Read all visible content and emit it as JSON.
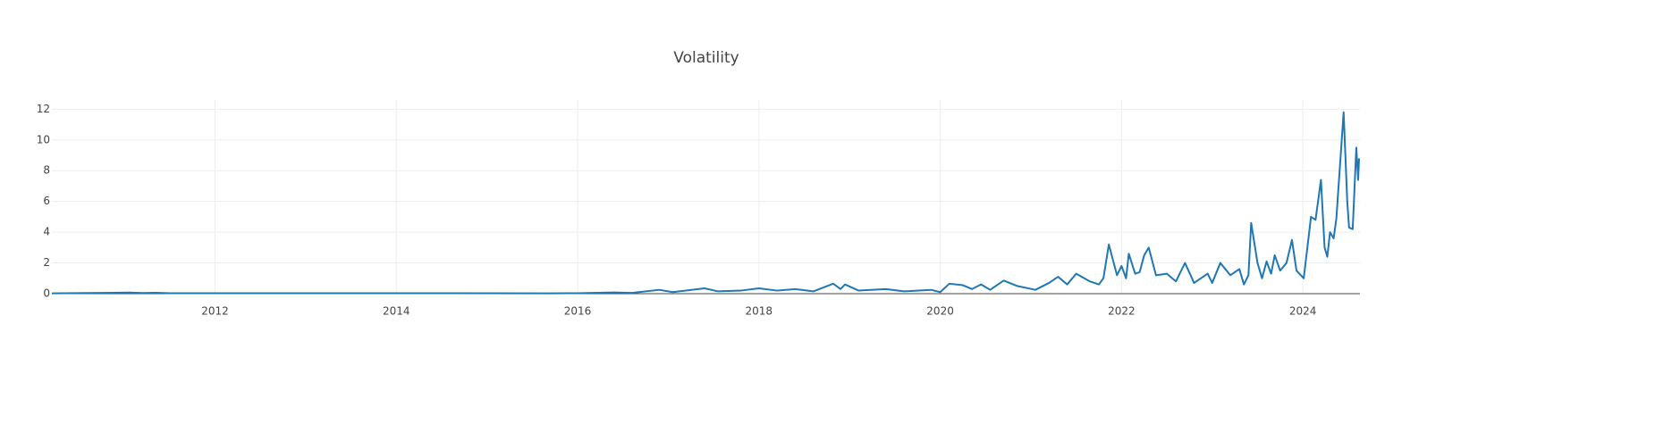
{
  "chart_data": {
    "type": "line",
    "title": "Volatility",
    "x": [
      2010.2,
      2011.05,
      2011.2,
      2011.35,
      2011.5,
      2013,
      2014.5,
      2015.7,
      2016.0,
      2016.4,
      2016.6,
      2016.9,
      2017.05,
      2017.4,
      2017.55,
      2017.8,
      2018.0,
      2018.2,
      2018.4,
      2018.6,
      2018.82,
      2018.9,
      2018.95,
      2019.1,
      2019.4,
      2019.6,
      2019.9,
      2020.0,
      2020.1,
      2020.25,
      2020.35,
      2020.45,
      2020.55,
      2020.7,
      2020.85,
      2021.05,
      2021.2,
      2021.3,
      2021.4,
      2021.5,
      2021.65,
      2021.75,
      2021.8,
      2021.86,
      2021.95,
      2022.0,
      2022.05,
      2022.08,
      2022.15,
      2022.2,
      2022.25,
      2022.3,
      2022.38,
      2022.5,
      2022.6,
      2022.7,
      2022.8,
      2022.95,
      2023.0,
      2023.09,
      2023.2,
      2023.3,
      2023.35,
      2023.4,
      2023.43,
      2023.5,
      2023.55,
      2023.6,
      2023.65,
      2023.69,
      2023.75,
      2023.82,
      2023.88,
      2023.93,
      2024.01,
      2024.09,
      2024.14,
      2024.2,
      2024.24,
      2024.27,
      2024.3,
      2024.34,
      2024.37,
      2024.45,
      2024.49,
      2024.51,
      2024.55,
      2024.59,
      2024.61,
      2024.62
    ],
    "series": [
      {
        "color": "#1f77b4",
        "values": [
          0.02,
          0.07,
          0.04,
          0.06,
          0.03,
          0.03,
          0.03,
          0.02,
          0.03,
          0.08,
          0.05,
          0.25,
          0.1,
          0.35,
          0.15,
          0.2,
          0.35,
          0.2,
          0.3,
          0.15,
          0.65,
          0.3,
          0.6,
          0.2,
          0.3,
          0.15,
          0.25,
          0.1,
          0.65,
          0.55,
          0.3,
          0.6,
          0.25,
          0.85,
          0.5,
          0.25,
          0.7,
          1.1,
          0.6,
          1.3,
          0.8,
          0.6,
          1.0,
          3.2,
          1.2,
          1.8,
          1.0,
          2.6,
          1.3,
          1.4,
          2.5,
          3.0,
          1.2,
          1.3,
          0.8,
          2.0,
          0.7,
          1.3,
          0.7,
          2.0,
          1.2,
          1.6,
          0.6,
          1.2,
          4.6,
          2.0,
          1.0,
          2.1,
          1.3,
          2.5,
          1.5,
          2.0,
          3.5,
          1.5,
          1.0,
          5.0,
          4.8,
          7.4,
          3.0,
          2.4,
          4.0,
          3.6,
          4.9,
          11.8,
          6.0,
          4.3,
          4.2,
          9.5,
          7.4,
          8.8
        ]
      }
    ],
    "xlim": [
      2010.2,
      2024.63
    ],
    "xticks": [
      2012,
      2014,
      2016,
      2018,
      2020,
      2022,
      2024
    ],
    "ylim": [
      0,
      12.6
    ],
    "yticks": [
      0,
      2,
      4,
      6,
      8,
      10,
      12
    ],
    "grid": true
  }
}
